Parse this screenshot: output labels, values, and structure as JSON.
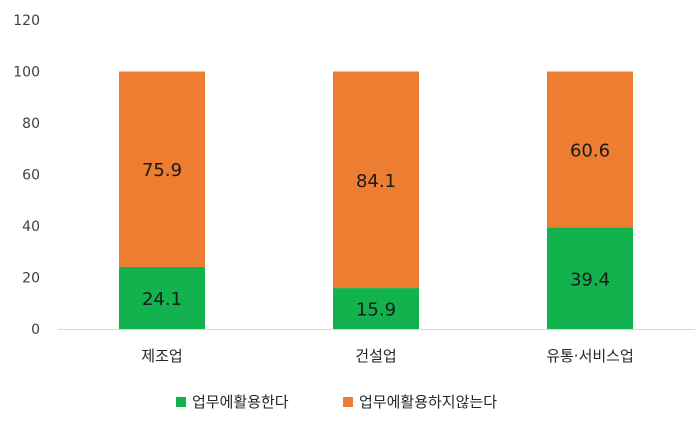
{
  "chart_data": {
    "type": "bar",
    "stacked": true,
    "categories": [
      "제조업",
      "건설업",
      "유통·서비스업"
    ],
    "series": [
      {
        "name": "업무에활용한다",
        "values": [
          24.1,
          15.9,
          39.4
        ],
        "color": "#12b24f"
      },
      {
        "name": "업무에활용하지않는다",
        "values": [
          75.9,
          84.1,
          60.6
        ],
        "color": "#ed7d31"
      }
    ],
    "y_ticks": [
      "0",
      "20",
      "40",
      "60",
      "80",
      "100",
      "120"
    ],
    "ylim": [
      0,
      120
    ],
    "grid": false,
    "legend_position": "bottom",
    "axis_color": "#d9d9d9"
  }
}
